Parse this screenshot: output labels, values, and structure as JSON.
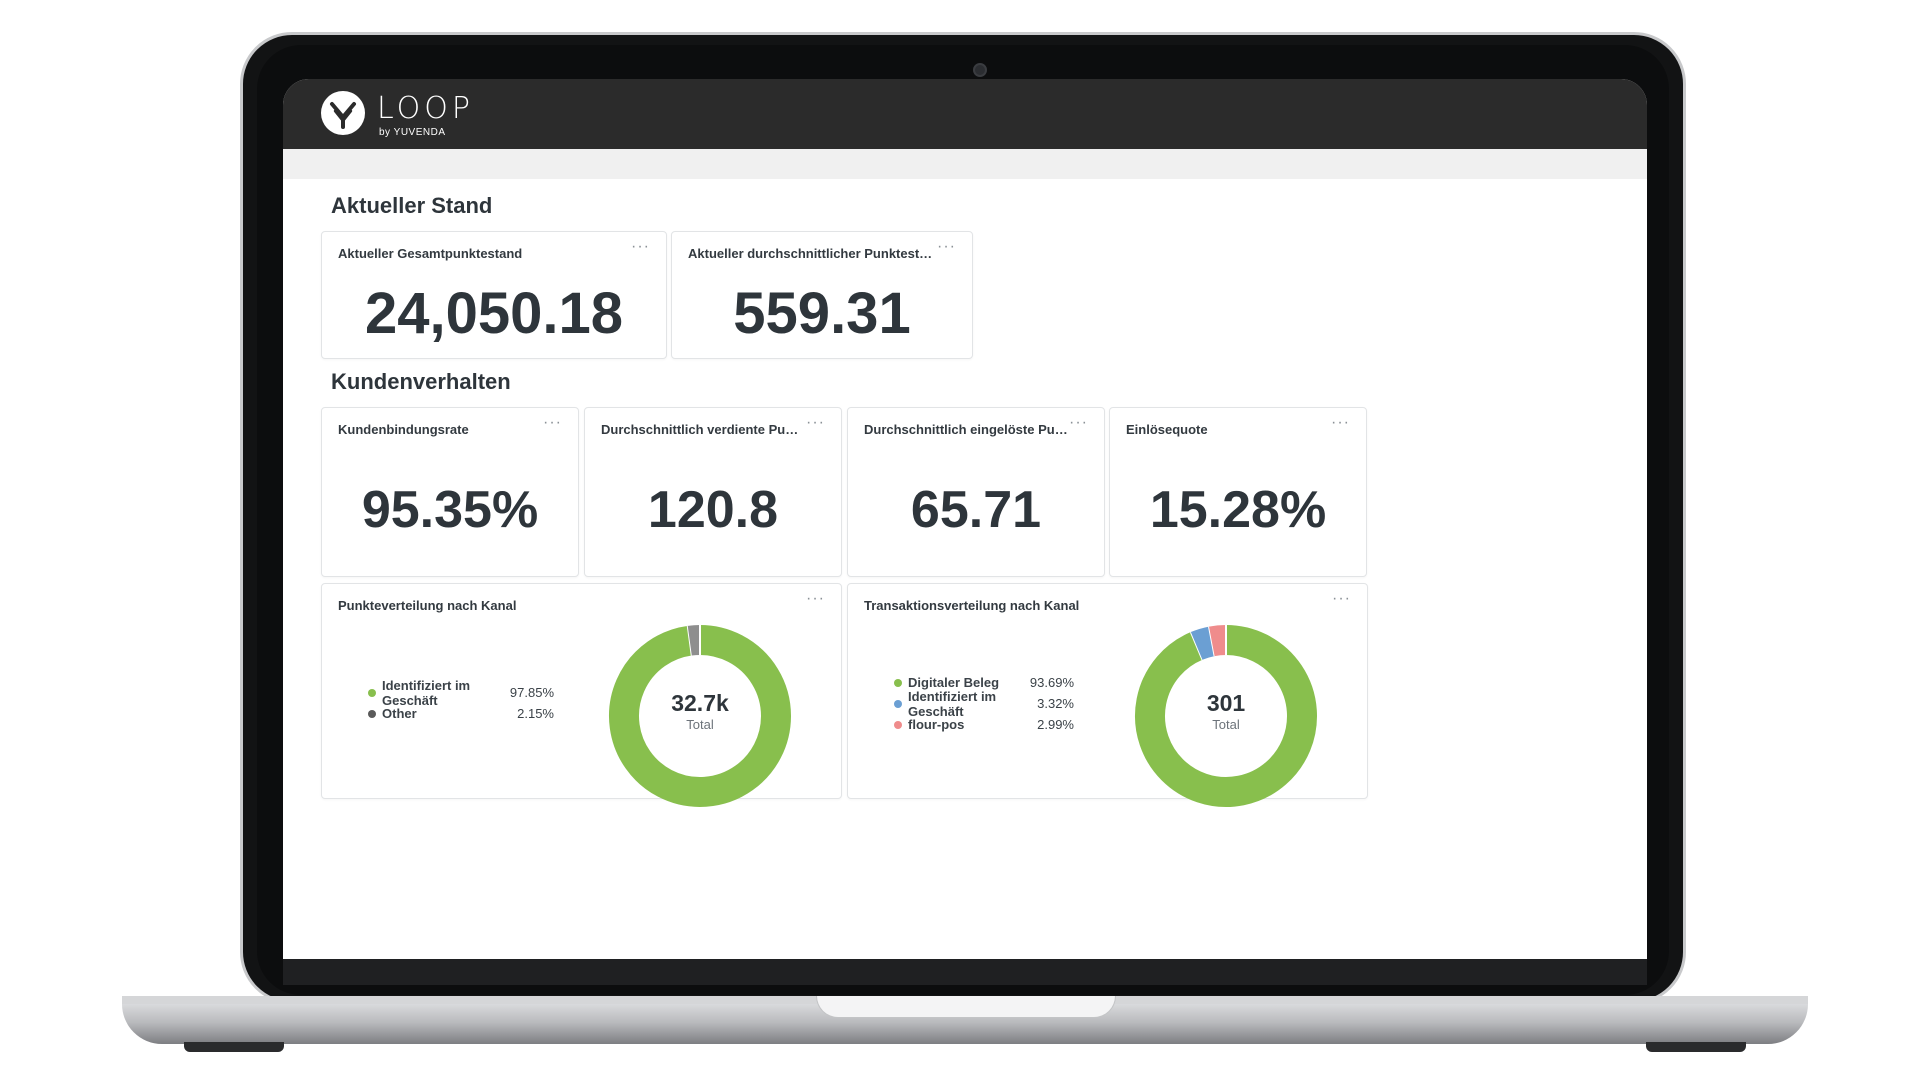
{
  "app": {
    "logo_text": "LOOP",
    "logo_sub": "by YUVENDA"
  },
  "sections": {
    "current": {
      "title": "Aktueller Stand"
    },
    "behavior": {
      "title": "Kundenverhalten"
    }
  },
  "menu_glyph": "···",
  "kpis": [
    {
      "title": "Aktueller Gesamtpunktestand",
      "value": "24,050.18"
    },
    {
      "title": "Aktueller durchschnittlicher Punktestand pro Ko...",
      "value": "559.31"
    },
    {
      "title": "Kundenbindungsrate",
      "value": "95.35%"
    },
    {
      "title": "Durchschnittlich verdiente Punkte pro T...",
      "value": "120.8"
    },
    {
      "title": "Durchschnittlich eingelöste Punkte pro T...",
      "value": "65.71"
    },
    {
      "title": "Einlösequote",
      "value": "15.28%"
    }
  ],
  "charts": [
    {
      "title": "Punkteverteilung nach Kanal",
      "total": "32.7k",
      "total_label": "Total",
      "legend": [
        {
          "label": "Identifiziert im Geschäft",
          "value": "97.85%"
        },
        {
          "label": "Other",
          "value": "2.15%"
        }
      ]
    },
    {
      "title": "Transaktionsverteilung nach Kanal",
      "total": "301",
      "total_label": "Total",
      "legend": [
        {
          "label": "Digitaler Beleg",
          "value": "93.69%"
        },
        {
          "label": "Identifiziert im Geschäft",
          "value": "3.32%"
        },
        {
          "label": "flour-pos",
          "value": "2.99%"
        }
      ]
    }
  ],
  "chart_data": [
    {
      "type": "pie",
      "title": "Punkteverteilung nach Kanal",
      "categories": [
        "Identifiziert im Geschäft",
        "Other"
      ],
      "values": [
        97.85,
        2.15
      ],
      "colors": [
        "#88bf4d",
        "#8e8e8e"
      ],
      "total": "32.7k"
    },
    {
      "type": "pie",
      "title": "Transaktionsverteilung nach Kanal",
      "categories": [
        "Digitaler Beleg",
        "Identifiziert im Geschäft",
        "flour-pos"
      ],
      "values": [
        93.69,
        3.32,
        2.99
      ],
      "colors": [
        "#88bf4d",
        "#6b9fd3",
        "#ef8c8c"
      ],
      "total": "301"
    }
  ]
}
